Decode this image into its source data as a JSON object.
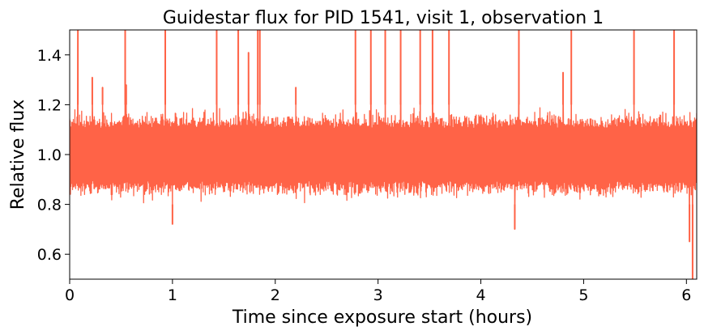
{
  "chart_data": {
    "type": "line",
    "title": "Guidestar flux for PID 1541, visit 1, observation 1",
    "xlabel": "Time since exposure start (hours)",
    "ylabel": "Relative flux",
    "xlim": [
      0,
      6.1
    ],
    "ylim": [
      0.5,
      1.5
    ],
    "xticks": [
      0,
      1,
      2,
      3,
      4,
      5,
      6
    ],
    "xtick_labels": [
      "0",
      "1",
      "2",
      "3",
      "4",
      "5",
      "6"
    ],
    "yticks": [
      0.6,
      0.8,
      1.0,
      1.2,
      1.4
    ],
    "ytick_labels": [
      "0.6",
      "0.8",
      "1.0",
      "1.2",
      "1.4"
    ],
    "grid": false,
    "series": [
      {
        "name": "Guidestar flux",
        "color": "#ff6347",
        "noise_band": {
          "center": 1.0,
          "typical_max": 1.2,
          "typical_min": 0.8,
          "x_start": 0,
          "x_end": 6.1
        },
        "spikes_up": [
          {
            "x": 0.08,
            "y": 1.5
          },
          {
            "x": 0.54,
            "y": 1.5
          },
          {
            "x": 0.93,
            "y": 1.5
          },
          {
            "x": 1.43,
            "y": 1.5
          },
          {
            "x": 1.64,
            "y": 1.5
          },
          {
            "x": 1.74,
            "y": 1.41
          },
          {
            "x": 1.83,
            "y": 1.5
          },
          {
            "x": 1.85,
            "y": 1.5
          },
          {
            "x": 2.78,
            "y": 1.5
          },
          {
            "x": 2.93,
            "y": 1.5
          },
          {
            "x": 3.07,
            "y": 1.5
          },
          {
            "x": 3.22,
            "y": 1.5
          },
          {
            "x": 3.41,
            "y": 1.5
          },
          {
            "x": 3.53,
            "y": 1.5
          },
          {
            "x": 3.69,
            "y": 1.5
          },
          {
            "x": 4.37,
            "y": 1.5
          },
          {
            "x": 4.8,
            "y": 1.33
          },
          {
            "x": 4.88,
            "y": 1.5
          },
          {
            "x": 5.49,
            "y": 1.5
          },
          {
            "x": 5.88,
            "y": 1.5
          },
          {
            "x": 0.22,
            "y": 1.31
          },
          {
            "x": 0.55,
            "y": 1.28
          },
          {
            "x": 0.32,
            "y": 1.27
          },
          {
            "x": 2.2,
            "y": 1.27
          }
        ],
        "spikes_down": [
          {
            "x": 1.0,
            "y": 0.72
          },
          {
            "x": 4.33,
            "y": 0.7
          },
          {
            "x": 6.03,
            "y": 0.65
          },
          {
            "x": 6.06,
            "y": 0.5
          }
        ]
      }
    ]
  }
}
